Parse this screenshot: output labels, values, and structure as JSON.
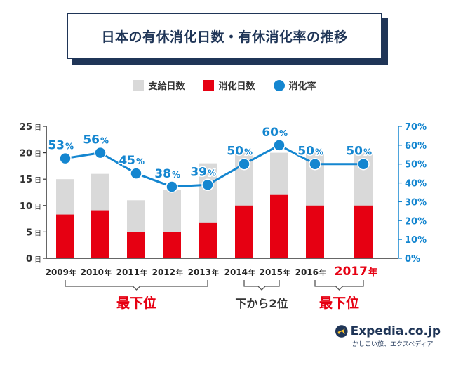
{
  "title": "日本の有休消化日数・有休消化率の推移",
  "legend": {
    "total_days": "支給日数",
    "used_days": "消化日数",
    "rate": "消化率"
  },
  "brand": {
    "name": "Expedia.co.jp",
    "tagline": "かしこい旅、エクスペディア"
  },
  "colors": {
    "total": "#d9d9d9",
    "used": "#e60012",
    "rate": "#1486d0",
    "navy": "#1f3557",
    "highlight": "#e60012"
  },
  "chart_data": {
    "type": "bar+line",
    "title": "日本の有休消化日数・有休消化率の推移",
    "categories": [
      "2009年",
      "2010年",
      "2011年",
      "2012年",
      "2013年",
      "2014年",
      "2015年",
      "2016年",
      "2017年"
    ],
    "year_labels": [
      "2009",
      "2010",
      "2011",
      "2012",
      "2013",
      "2014",
      "2015",
      "2016",
      "2017"
    ],
    "year_suffix": "年",
    "series": [
      {
        "name": "支給日数",
        "type": "bar",
        "axis": "left",
        "values": [
          15,
          16,
          11,
          13,
          18,
          20,
          20,
          20,
          20
        ]
      },
      {
        "name": "消化日数",
        "type": "bar",
        "axis": "left",
        "values": [
          8.3,
          9.1,
          5,
          5,
          6.8,
          10,
          12,
          10,
          10
        ]
      },
      {
        "name": "消化率",
        "type": "line",
        "axis": "right",
        "values": [
          53,
          56,
          45,
          38,
          39,
          50,
          60,
          50,
          50
        ]
      }
    ],
    "rate_labels": [
      "53",
      "56",
      "45",
      "38",
      "39",
      "50",
      "60",
      "50",
      "50"
    ],
    "rate_suffix": "%",
    "left_axis": {
      "min": 0,
      "max": 25,
      "ticks": [
        0,
        5,
        10,
        15,
        20,
        25
      ],
      "unit": "日"
    },
    "right_axis": {
      "min": 0,
      "max": 70,
      "ticks": [
        0,
        10,
        20,
        30,
        40,
        50,
        60,
        70
      ],
      "unit": "%"
    },
    "highlight_category": "2017年",
    "annotations": [
      {
        "label": "最下位",
        "from": 0,
        "to": 4,
        "color": "#e60012"
      },
      {
        "label": "下から2位",
        "from": 5,
        "to": 6,
        "color": "#333333"
      },
      {
        "label": "最下位",
        "from": 7,
        "to": 8,
        "color": "#e60012"
      }
    ]
  }
}
